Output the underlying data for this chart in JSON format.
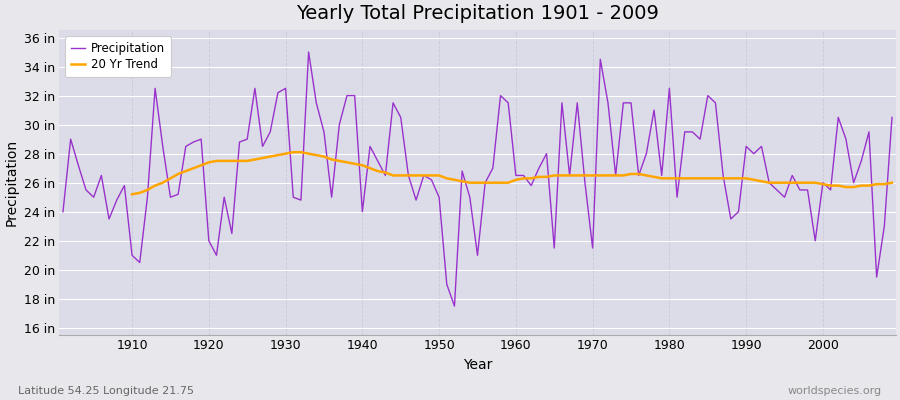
{
  "title": "Yearly Total Precipitation 1901 - 2009",
  "xlabel": "Year",
  "ylabel": "Precipitation",
  "lat_lon_label": "Latitude 54.25 Longitude 21.75",
  "worldspecies_label": "worldspecies.org",
  "years": [
    1901,
    1902,
    1903,
    1904,
    1905,
    1906,
    1907,
    1908,
    1909,
    1910,
    1911,
    1912,
    1913,
    1914,
    1915,
    1916,
    1917,
    1918,
    1919,
    1920,
    1921,
    1922,
    1923,
    1924,
    1925,
    1926,
    1927,
    1928,
    1929,
    1930,
    1931,
    1932,
    1933,
    1934,
    1935,
    1936,
    1937,
    1938,
    1939,
    1940,
    1941,
    1942,
    1943,
    1944,
    1945,
    1946,
    1947,
    1948,
    1949,
    1950,
    1951,
    1952,
    1953,
    1954,
    1955,
    1956,
    1957,
    1958,
    1959,
    1960,
    1961,
    1962,
    1963,
    1964,
    1965,
    1966,
    1967,
    1968,
    1969,
    1970,
    1971,
    1972,
    1973,
    1974,
    1975,
    1976,
    1977,
    1978,
    1979,
    1980,
    1981,
    1982,
    1983,
    1984,
    1985,
    1986,
    1987,
    1988,
    1989,
    1990,
    1991,
    1992,
    1993,
    1994,
    1995,
    1996,
    1997,
    1998,
    1999,
    2000,
    2001,
    2002,
    2003,
    2004,
    2005,
    2006,
    2007,
    2008,
    2009
  ],
  "precip": [
    24.0,
    29.0,
    27.2,
    25.5,
    25.0,
    26.5,
    23.5,
    24.8,
    25.8,
    21.0,
    20.5,
    25.0,
    32.5,
    28.5,
    25.0,
    25.2,
    28.5,
    28.8,
    29.0,
    22.0,
    21.0,
    25.0,
    22.5,
    28.8,
    29.0,
    32.5,
    28.5,
    29.5,
    32.2,
    32.5,
    25.0,
    24.8,
    35.0,
    31.5,
    29.5,
    25.0,
    30.0,
    32.0,
    32.0,
    24.0,
    28.5,
    27.5,
    26.5,
    31.5,
    30.5,
    26.5,
    24.8,
    26.5,
    26.2,
    25.0,
    19.0,
    17.5,
    26.8,
    25.0,
    21.0,
    26.0,
    27.0,
    32.0,
    31.5,
    26.5,
    26.5,
    25.8,
    27.0,
    28.0,
    21.5,
    31.5,
    26.5,
    31.5,
    26.0,
    21.5,
    34.5,
    31.5,
    26.5,
    31.5,
    31.5,
    26.5,
    28.0,
    31.0,
    26.5,
    32.5,
    25.0,
    29.5,
    29.5,
    29.0,
    32.0,
    31.5,
    26.5,
    23.5,
    24.0,
    28.5,
    28.0,
    28.5,
    26.0,
    25.5,
    25.0,
    26.5,
    25.5,
    25.5,
    22.0,
    26.0,
    25.5,
    30.5,
    29.0,
    26.0,
    27.5,
    29.5,
    19.5,
    23.0,
    30.5
  ],
  "trend_start_year": 1910,
  "trend": [
    25.2,
    25.3,
    25.5,
    25.8,
    26.0,
    26.3,
    26.6,
    26.8,
    27.0,
    27.2,
    27.4,
    27.5,
    27.5,
    27.5,
    27.5,
    27.5,
    27.6,
    27.7,
    27.8,
    27.9,
    28.0,
    28.1,
    28.1,
    28.0,
    27.9,
    27.8,
    27.6,
    27.5,
    27.4,
    27.3,
    27.2,
    27.0,
    26.8,
    26.7,
    26.5,
    26.5,
    26.5,
    26.5,
    26.5,
    26.5,
    26.5,
    26.3,
    26.2,
    26.1,
    26.0,
    26.0,
    26.0,
    26.0,
    26.0,
    26.0,
    26.2,
    26.3,
    26.3,
    26.4,
    26.4,
    26.5,
    26.5,
    26.5,
    26.5,
    26.5,
    26.5,
    26.5,
    26.5,
    26.5,
    26.5,
    26.6,
    26.6,
    26.5,
    26.4,
    26.3,
    26.3,
    26.3,
    26.3,
    26.3,
    26.3,
    26.3,
    26.3,
    26.3,
    26.3,
    26.3,
    26.3,
    26.2,
    26.1,
    26.0,
    26.0,
    26.0,
    26.0,
    26.0,
    26.0,
    26.0,
    25.9,
    25.8,
    25.8,
    25.7,
    25.7,
    25.8,
    25.8,
    25.9,
    25.9,
    26.0
  ],
  "precip_color": "#9932CC",
  "trend_color": "#FFA500",
  "bg_color": "#e8e8ec",
  "plot_bg_color": "#dcdce8",
  "grid_color_h": "#ffffff",
  "grid_color_v": "#c8c8d8",
  "title_fontsize": 14,
  "axis_label_fontsize": 10,
  "tick_fontsize": 9,
  "ylim": [
    15.5,
    36.5
  ],
  "yticks": [
    16,
    18,
    20,
    22,
    24,
    26,
    28,
    30,
    32,
    34,
    36
  ],
  "xticks": [
    1910,
    1920,
    1930,
    1940,
    1950,
    1960,
    1970,
    1980,
    1990,
    2000
  ],
  "xlim": [
    1900.5,
    2009.5
  ]
}
